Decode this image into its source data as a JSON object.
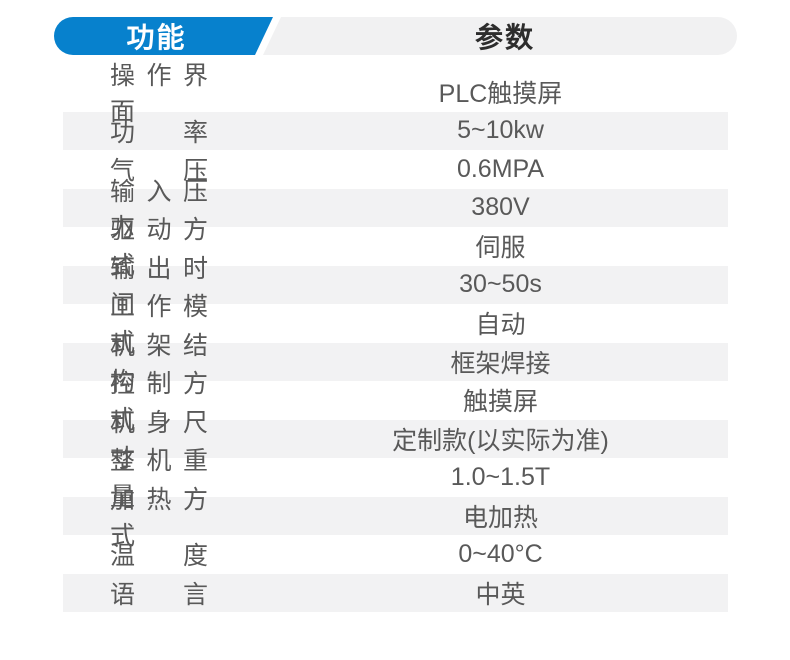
{
  "header": {
    "function_tab": "功能",
    "params_tab": "参数"
  },
  "colors": {
    "accent_blue": "#0781cd",
    "header_pill_gray": "#f1f1f2",
    "row_stripe_gray": "#f2f2f3",
    "body_text_gray": "#595959",
    "header_text_dark": "#2d2d2d",
    "tab_text_white": "#ffffff"
  },
  "spec_table": {
    "rows": [
      {
        "label": "操作界面",
        "value": "PLC触摸屏"
      },
      {
        "label": "功率",
        "value": "5~10kw"
      },
      {
        "label": "气压",
        "value": "0.6MPA"
      },
      {
        "label": "输入压力",
        "value": "380V"
      },
      {
        "label": "驱动方式",
        "value": "伺服"
      },
      {
        "label": "输出时间",
        "value": "30~50s"
      },
      {
        "label": "工作模式",
        "value": "自动"
      },
      {
        "label": "机架结构",
        "value": "框架焊接"
      },
      {
        "label": "控制方式",
        "value": "触摸屏"
      },
      {
        "label": "机身尺寸",
        "value": "定制款(以实际为准)"
      },
      {
        "label": "整机重量",
        "value": "1.0~1.5T"
      },
      {
        "label": "加热方式",
        "value": "电加热"
      },
      {
        "label": "温度",
        "value": "0~40°C"
      },
      {
        "label": "语言",
        "value": "中英"
      }
    ]
  }
}
